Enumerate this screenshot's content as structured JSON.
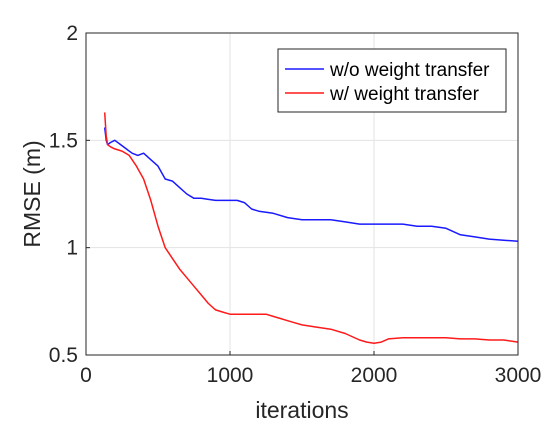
{
  "chart_data": {
    "type": "line",
    "xlabel": "iterations",
    "ylabel": "RMSE (m)",
    "xlim": [
      0,
      3000
    ],
    "ylim": [
      0.5,
      2
    ],
    "xticks": [
      0,
      1000,
      2000,
      3000
    ],
    "xtick_labels": [
      "0",
      "1000",
      "2000",
      "3000"
    ],
    "yticks": [
      0.5,
      1,
      1.5,
      2
    ],
    "ytick_labels": [
      "0.5",
      "1",
      "1.5",
      "2"
    ],
    "grid": true,
    "legend_position": "top-right",
    "series": [
      {
        "name": "w/o weight transfer",
        "color": "#1a1aff",
        "x": [
          130,
          140,
          150,
          170,
          200,
          240,
          280,
          320,
          360,
          400,
          450,
          500,
          550,
          600,
          650,
          700,
          750,
          800,
          850,
          900,
          950,
          1000,
          1050,
          1100,
          1150,
          1200,
          1300,
          1400,
          1500,
          1600,
          1700,
          1800,
          1900,
          2000,
          2100,
          2200,
          2300,
          2400,
          2500,
          2600,
          2700,
          2800,
          2900,
          3000
        ],
        "values": [
          1.56,
          1.5,
          1.48,
          1.49,
          1.5,
          1.48,
          1.46,
          1.44,
          1.43,
          1.44,
          1.41,
          1.38,
          1.32,
          1.31,
          1.28,
          1.25,
          1.23,
          1.23,
          1.225,
          1.22,
          1.22,
          1.22,
          1.22,
          1.21,
          1.18,
          1.17,
          1.16,
          1.14,
          1.13,
          1.13,
          1.13,
          1.12,
          1.11,
          1.11,
          1.11,
          1.11,
          1.1,
          1.1,
          1.09,
          1.06,
          1.05,
          1.04,
          1.035,
          1.03
        ]
      },
      {
        "name": "w/ weight transfer",
        "color": "#ff1a1a",
        "x": [
          130,
          140,
          150,
          170,
          200,
          250,
          300,
          350,
          400,
          450,
          500,
          550,
          600,
          650,
          700,
          750,
          800,
          850,
          900,
          950,
          1000,
          1050,
          1100,
          1150,
          1200,
          1250,
          1300,
          1350,
          1400,
          1450,
          1500,
          1600,
          1700,
          1800,
          1900,
          1950,
          2000,
          2050,
          2100,
          2200,
          2300,
          2400,
          2500,
          2600,
          2700,
          2800,
          2900,
          3000
        ],
        "values": [
          1.63,
          1.52,
          1.48,
          1.47,
          1.46,
          1.45,
          1.43,
          1.38,
          1.32,
          1.22,
          1.1,
          1.0,
          0.95,
          0.9,
          0.86,
          0.82,
          0.78,
          0.74,
          0.71,
          0.7,
          0.69,
          0.69,
          0.69,
          0.69,
          0.69,
          0.69,
          0.68,
          0.67,
          0.66,
          0.65,
          0.64,
          0.63,
          0.62,
          0.6,
          0.57,
          0.56,
          0.555,
          0.56,
          0.575,
          0.58,
          0.58,
          0.58,
          0.58,
          0.575,
          0.575,
          0.57,
          0.57,
          0.56
        ]
      }
    ]
  }
}
